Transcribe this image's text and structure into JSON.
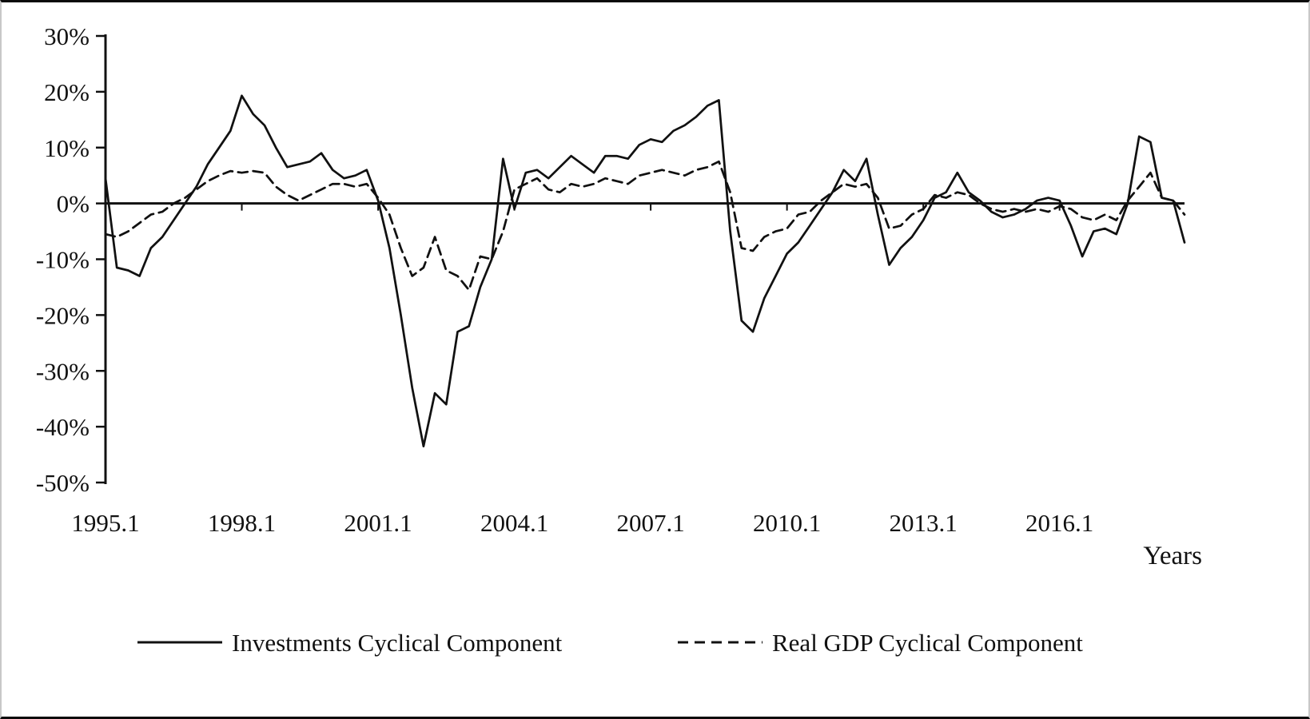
{
  "figure": {
    "background": "#ffffff",
    "line_color": "#111111"
  },
  "chart_data": {
    "type": "line",
    "title": "",
    "xlabel": "Years",
    "ylabel": "",
    "ylim": [
      -50,
      30
    ],
    "y_tick_step": 10,
    "grid": false,
    "legend_position": "bottom",
    "y_tick_labels": [
      "30%",
      "20%",
      "10%",
      "0%",
      "-10%",
      "-20%",
      "-30%",
      "-40%",
      "-50%"
    ],
    "x_major_ticks": [
      "1995.1",
      "1998.1",
      "2001.1",
      "2004.1",
      "2007.1",
      "2010.1",
      "2013.1",
      "2016.1"
    ],
    "x": [
      "1995.1",
      "1995.2",
      "1995.3",
      "1995.4",
      "1996.1",
      "1996.2",
      "1996.3",
      "1996.4",
      "1997.1",
      "1997.2",
      "1997.3",
      "1997.4",
      "1998.1",
      "1998.2",
      "1998.3",
      "1998.4",
      "1999.1",
      "1999.2",
      "1999.3",
      "1999.4",
      "2000.1",
      "2000.2",
      "2000.3",
      "2000.4",
      "2001.1",
      "2001.2",
      "2001.3",
      "2001.4",
      "2002.1",
      "2002.2",
      "2002.3",
      "2002.4",
      "2003.1",
      "2003.2",
      "2003.3",
      "2003.4",
      "2004.1",
      "2004.2",
      "2004.3",
      "2004.4",
      "2005.1",
      "2005.2",
      "2005.3",
      "2005.4",
      "2006.1",
      "2006.2",
      "2006.3",
      "2006.4",
      "2007.1",
      "2007.2",
      "2007.3",
      "2007.4",
      "2008.1",
      "2008.2",
      "2008.3",
      "2008.4",
      "2009.1",
      "2009.2",
      "2009.3",
      "2009.4",
      "2010.1",
      "2010.2",
      "2010.3",
      "2010.4",
      "2011.1",
      "2011.2",
      "2011.3",
      "2011.4",
      "2012.1",
      "2012.2",
      "2012.3",
      "2012.4",
      "2013.1",
      "2013.2",
      "2013.3",
      "2013.4",
      "2014.1",
      "2014.2",
      "2014.3",
      "2014.4",
      "2015.1",
      "2015.2",
      "2015.3",
      "2015.4",
      "2016.1",
      "2016.2",
      "2016.3",
      "2016.4",
      "2017.1",
      "2017.2",
      "2017.3",
      "2017.4",
      "2018.1",
      "2018.2",
      "2018.3",
      "2018.4"
    ],
    "series": [
      {
        "name": "Investments Cyclical Component",
        "style": "solid",
        "values": [
          4.5,
          -11.5,
          -12,
          -13,
          -8,
          -6,
          -3,
          0,
          3,
          7,
          10,
          13,
          19.3,
          16,
          14,
          10,
          6.5,
          7,
          7.5,
          9,
          6,
          4.5,
          5,
          6,
          0.5,
          -8,
          -20,
          -33,
          -43.5,
          -34,
          -36,
          -23,
          -22,
          -15,
          -10,
          8,
          -1,
          5.5,
          6,
          4.5,
          6.5,
          8.5,
          7,
          5.5,
          8.5,
          8.5,
          8,
          10.5,
          11.5,
          11,
          13,
          14,
          15.5,
          17.5,
          18.5,
          -5,
          -21,
          -23,
          -17,
          -13,
          -9,
          -7,
          -4,
          -1,
          2,
          6,
          4,
          8,
          -2,
          -11,
          -8,
          -6,
          -3,
          1,
          2,
          5.5,
          2,
          0.5,
          -1.5,
          -2.5,
          -2,
          -1,
          0.5,
          1,
          0.5,
          -4,
          -9.5,
          -5,
          -4.5,
          -5.5,
          0,
          12,
          11,
          1,
          0.5,
          -7
        ]
      },
      {
        "name": "Real GDP Cyclical Component",
        "style": "dashed",
        "values": [
          -5.5,
          -6,
          -5,
          -3.5,
          -2,
          -1.5,
          0,
          1,
          2.5,
          4,
          5,
          5.8,
          5.5,
          5.8,
          5.5,
          3,
          1.5,
          0.5,
          1.5,
          2.5,
          3.5,
          3.5,
          3,
          3.5,
          1,
          -2,
          -8,
          -13,
          -11.5,
          -6,
          -12,
          -13,
          -15.5,
          -9.5,
          -10,
          -5,
          2.5,
          3.5,
          4.5,
          2.5,
          2,
          3.5,
          3,
          3.5,
          4.5,
          4,
          3.5,
          5,
          5.5,
          6,
          5.5,
          5,
          6,
          6.5,
          7.5,
          2,
          -8,
          -8.5,
          -6,
          -5,
          -4.5,
          -2,
          -1.5,
          0.5,
          2,
          3.5,
          3,
          3.5,
          1,
          -4.5,
          -4,
          -2,
          -1,
          1.5,
          1,
          2,
          1.5,
          0,
          -1,
          -1.5,
          -1,
          -1.5,
          -1,
          -1.5,
          -0.5,
          -1,
          -2.5,
          -3,
          -2,
          -3,
          0.5,
          3,
          5.5,
          1,
          0.5,
          -2
        ]
      }
    ]
  }
}
